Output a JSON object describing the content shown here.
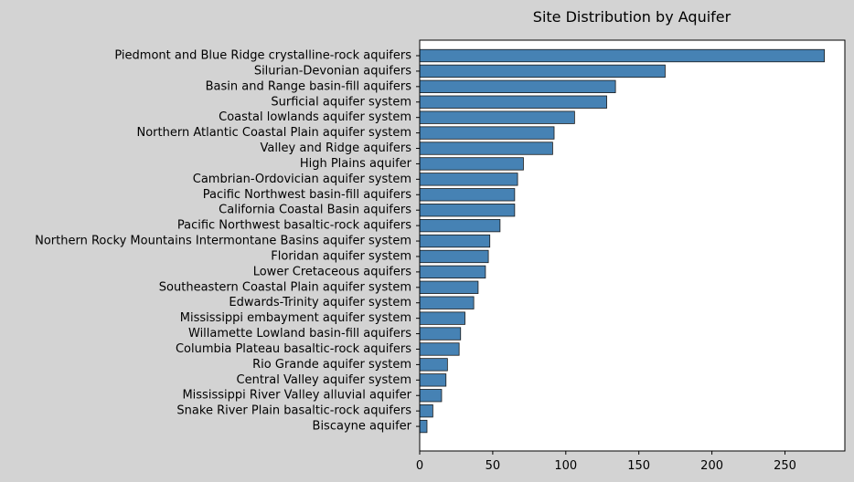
{
  "chart_data": {
    "type": "bar",
    "orientation": "horizontal",
    "title": "Site Distribution by Aquifer",
    "xlabel": "",
    "ylabel": "",
    "xlim": [
      0,
      291
    ],
    "xticks": [
      0,
      50,
      100,
      150,
      200,
      250
    ],
    "grid": false,
    "bar_color": "#4682b4",
    "bar_edge_color": "#1a1a1a",
    "background_color": "#d3d3d3",
    "plot_background_color": "#ffffff",
    "categories": [
      "Piedmont and Blue Ridge crystalline-rock aquifers",
      "Silurian-Devonian aquifers",
      "Basin and Range basin-fill aquifers",
      "Surficial aquifer system",
      "Coastal lowlands aquifer system",
      "Northern Atlantic Coastal Plain aquifer system",
      "Valley and Ridge aquifers",
      "High Plains aquifer",
      "Cambrian-Ordovician aquifer system",
      "Pacific Northwest basin-fill aquifers",
      "California Coastal Basin aquifers",
      "Pacific Northwest basaltic-rock aquifers",
      "Northern Rocky Mountains Intermontane Basins aquifer system",
      "Floridan aquifer system",
      "Lower Cretaceous aquifers",
      "Southeastern Coastal Plain aquifer system",
      "Edwards-Trinity aquifer system",
      "Mississippi embayment aquifer system",
      "Willamette Lowland basin-fill aquifers",
      "Columbia Plateau basaltic-rock aquifers",
      "Rio Grande aquifer system",
      "Central Valley aquifer system",
      "Mississippi River Valley alluvial aquifer",
      "Snake River Plain basaltic-rock aquifers",
      "Biscayne aquifer"
    ],
    "values": [
      277,
      168,
      134,
      128,
      106,
      92,
      91,
      71,
      67,
      65,
      65,
      55,
      48,
      47,
      45,
      40,
      37,
      31,
      28,
      27,
      19,
      18,
      15,
      9,
      5
    ]
  }
}
